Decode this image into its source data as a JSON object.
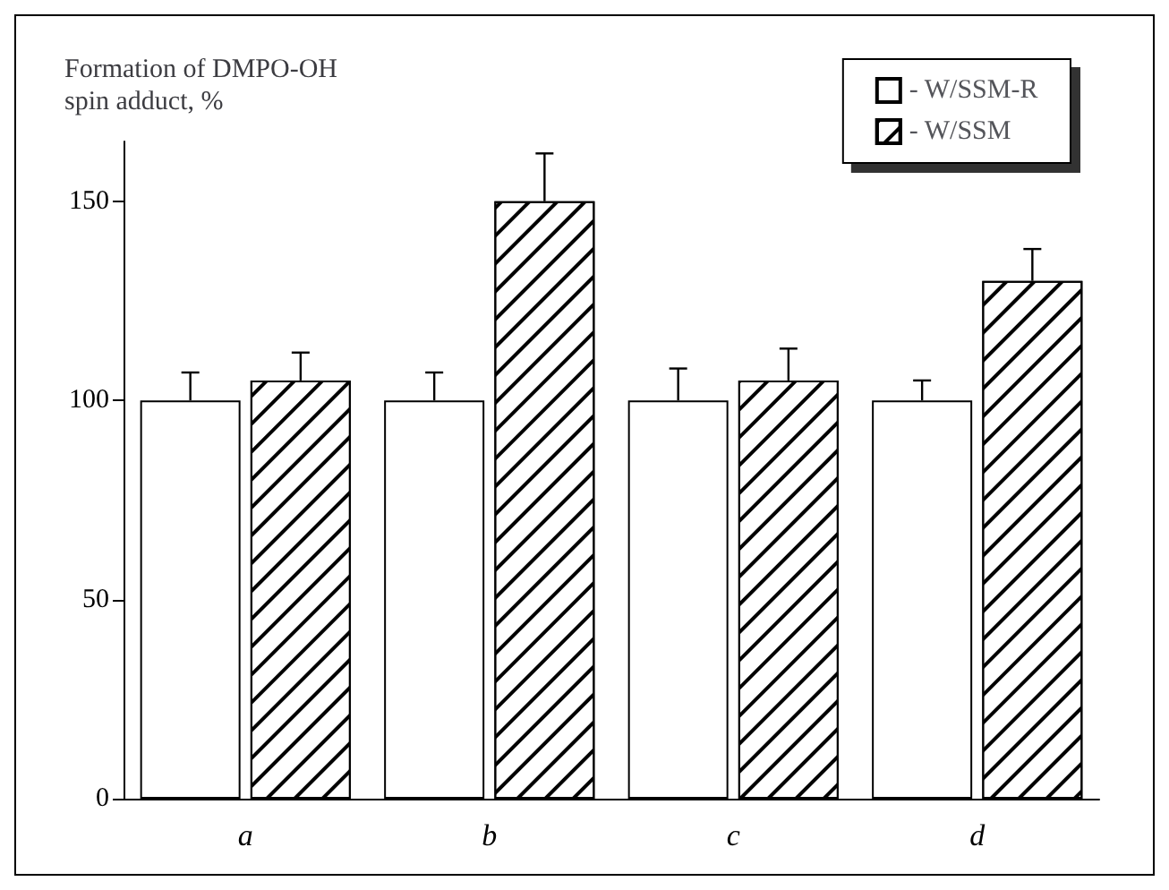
{
  "chart_data": {
    "type": "bar",
    "ylabel": "Formation of DMPO-OH\nspin adduct, %",
    "categories": [
      "a",
      "b",
      "c",
      "d"
    ],
    "series": [
      {
        "name": "- W/SSM-R",
        "color": "#ffffff",
        "values": [
          100,
          100,
          100,
          100
        ],
        "errors": [
          [
            100,
            107
          ],
          [
            100,
            107
          ],
          [
            100,
            108
          ],
          [
            100,
            105
          ]
        ]
      },
      {
        "name": "- W/SSM",
        "color": "#000000",
        "values": [
          105,
          150,
          105,
          130
        ],
        "errors": [
          [
            105,
            112
          ],
          [
            150,
            162
          ],
          [
            105,
            113
          ],
          [
            130,
            138
          ]
        ]
      }
    ],
    "ylim": [
      0,
      165
    ],
    "yticks": [
      0,
      50,
      100,
      150
    ],
    "grid": false,
    "legend": "top right"
  }
}
